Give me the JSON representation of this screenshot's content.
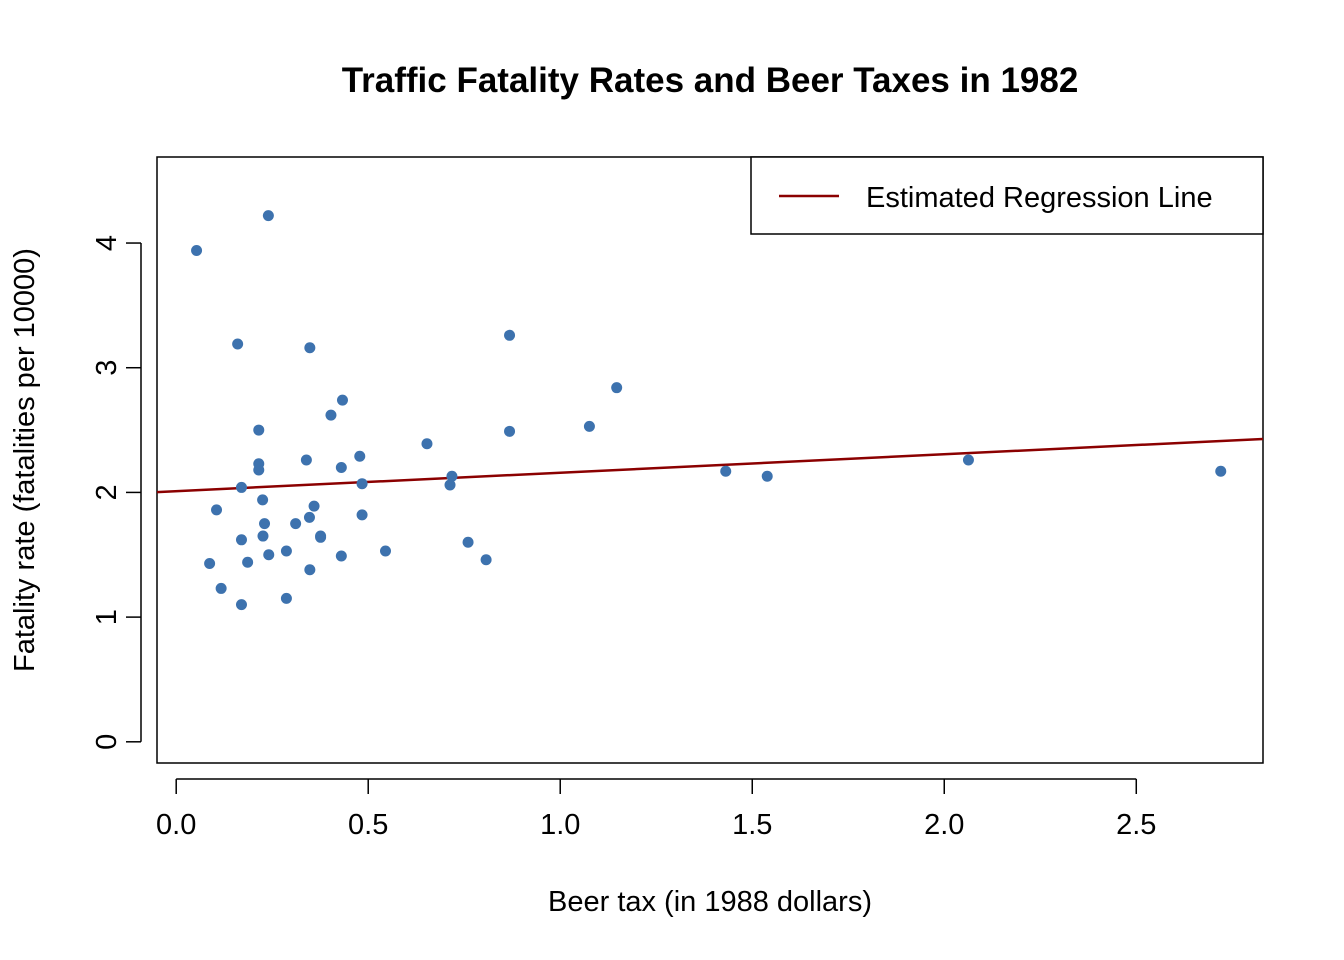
{
  "chart_data": {
    "type": "scatter",
    "title": "Traffic Fatality Rates and Beer Taxes in 1982",
    "xlabel": "Beer tax (in 1988 dollars)",
    "ylabel": "Fatality rate (fatalities per 10000)",
    "xlim": [
      -0.05,
      2.83
    ],
    "ylim": [
      -0.17,
      4.69
    ],
    "xticks": [
      0.0,
      0.5,
      1.0,
      1.5,
      2.0,
      2.5
    ],
    "xtick_labels": [
      "0.0",
      "0.5",
      "1.0",
      "1.5",
      "2.0",
      "2.5"
    ],
    "yticks": [
      0,
      1,
      2,
      3,
      4
    ],
    "ytick_labels": [
      "0",
      "1",
      "2",
      "3",
      "4"
    ],
    "grid": false,
    "legend_position": "top-right",
    "colors": {
      "points": "#3D72AE",
      "regression_line": "#8B0000",
      "axes": "#000000"
    },
    "series": [
      {
        "type": "scatter",
        "x": [
          0.053,
          0.24,
          0.16,
          0.348,
          0.868,
          1.147,
          0.433,
          0.403,
          0.215,
          0.868,
          1.076,
          0.653,
          0.478,
          0.215,
          0.215,
          0.339,
          0.43,
          0.718,
          0.17,
          0.484,
          0.713,
          1.431,
          1.539,
          2.063,
          2.72,
          0.225,
          0.359,
          0.105,
          0.23,
          0.311,
          0.347,
          0.484,
          0.17,
          0.376,
          0.76,
          0.226,
          0.087,
          0.241,
          0.287,
          0.43,
          0.545,
          0.807,
          0.186,
          0.117,
          0.348,
          0.17,
          0.287,
          0.376
        ],
        "y": [
          3.94,
          4.22,
          3.19,
          3.16,
          3.26,
          2.84,
          2.74,
          2.62,
          2.5,
          2.49,
          2.53,
          2.39,
          2.29,
          2.23,
          2.18,
          2.26,
          2.2,
          2.13,
          2.04,
          2.07,
          2.06,
          2.17,
          2.13,
          2.26,
          2.17,
          1.94,
          1.89,
          1.86,
          1.75,
          1.75,
          1.8,
          1.82,
          1.62,
          1.65,
          1.6,
          1.65,
          1.43,
          1.5,
          1.53,
          1.49,
          1.53,
          1.46,
          1.44,
          1.23,
          1.38,
          1.1,
          1.15,
          1.64
        ]
      },
      {
        "name": "Estimated Regression Line",
        "type": "line",
        "intercept": 2.01,
        "slope": 0.148
      }
    ]
  }
}
